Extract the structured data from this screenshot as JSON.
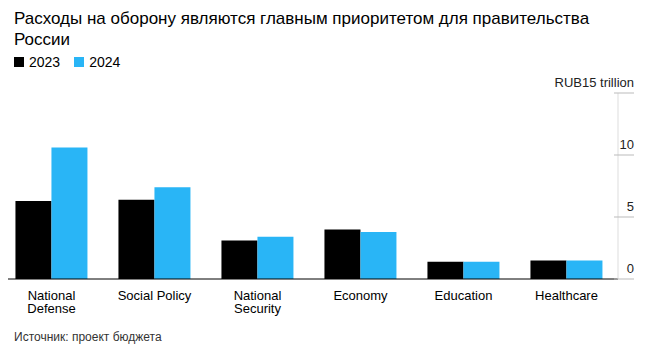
{
  "chart_data": {
    "type": "bar",
    "title": "Расходы на оборону являются главным приоритетом для правительства России",
    "categories": [
      "National Defense",
      "Social Policy",
      "National Security",
      "Economy",
      "Education",
      "Healthcare"
    ],
    "series": [
      {
        "name": "2023",
        "color": "#000000",
        "values": [
          6.3,
          6.4,
          3.1,
          4.0,
          1.4,
          1.5
        ]
      },
      {
        "name": "2024",
        "color": "#29b5f6",
        "values": [
          10.6,
          7.4,
          3.4,
          3.8,
          1.4,
          1.5
        ]
      }
    ],
    "ylim": [
      0,
      15
    ],
    "yticks": [
      0,
      5,
      10,
      {
        "value": 15,
        "label": "RUB15 trillion"
      }
    ],
    "source": "Источник: проект бюджета",
    "legend": "top-left"
  }
}
